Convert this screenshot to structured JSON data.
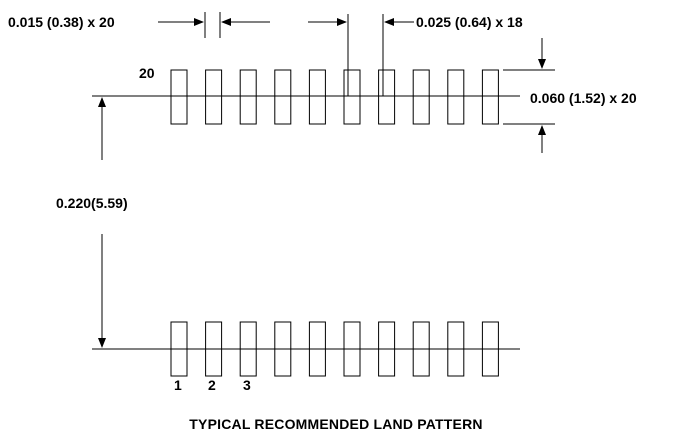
{
  "diagram": {
    "title": "TYPICAL RECOMMENDED LAND PATTERN",
    "pad_count_per_row": 10,
    "labels": {
      "pad_width": "0.015  (0.38) x 20",
      "pitch": "0.025 (0.64) x 18",
      "pad_length": "0.060 (1.52) x 20",
      "row_spacing": "0.220(5.59)"
    },
    "pin_labels": {
      "top_row": "20",
      "bottom_row": [
        "1",
        "2",
        "3"
      ]
    },
    "colors": {
      "line": "#000000",
      "background": "#ffffff"
    }
  }
}
